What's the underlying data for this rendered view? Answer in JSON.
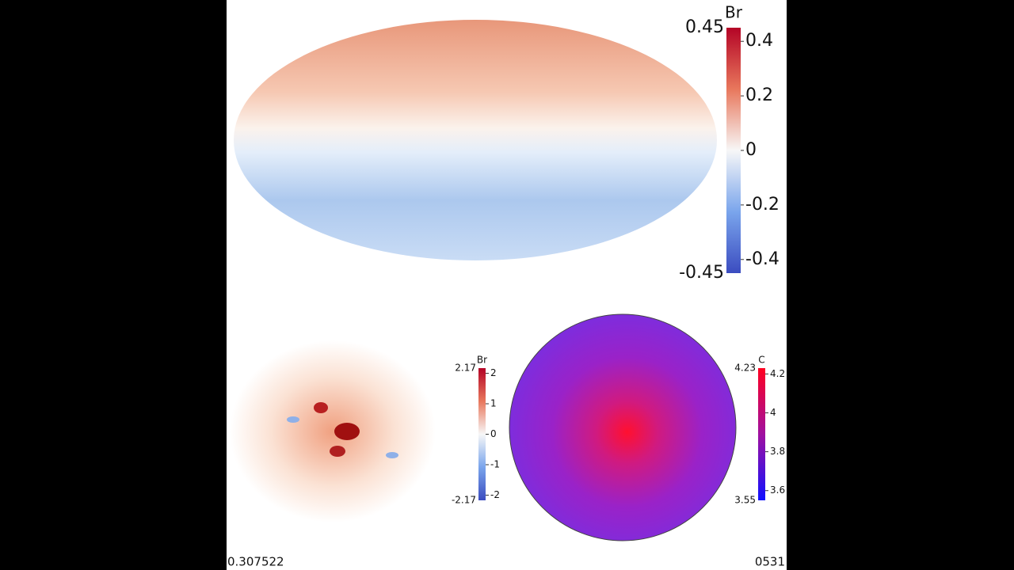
{
  "top_map": {
    "colorbar": {
      "title": "Br",
      "range": [
        -0.45,
        0.45
      ],
      "ticks": [
        0.4,
        0.2,
        0,
        -0.2,
        -0.4
      ]
    }
  },
  "bottom_left": {
    "colorbar": {
      "title": "Br",
      "range": [
        -2.17,
        2.17
      ],
      "ticks": [
        2,
        1,
        0,
        -1,
        -2
      ]
    }
  },
  "bottom_right": {
    "colorbar": {
      "title": "C",
      "range": [
        3.55,
        4.23
      ],
      "ticks": [
        4.2,
        4,
        3.8,
        3.6
      ]
    }
  },
  "time": "0.307522",
  "frame": "0531"
}
